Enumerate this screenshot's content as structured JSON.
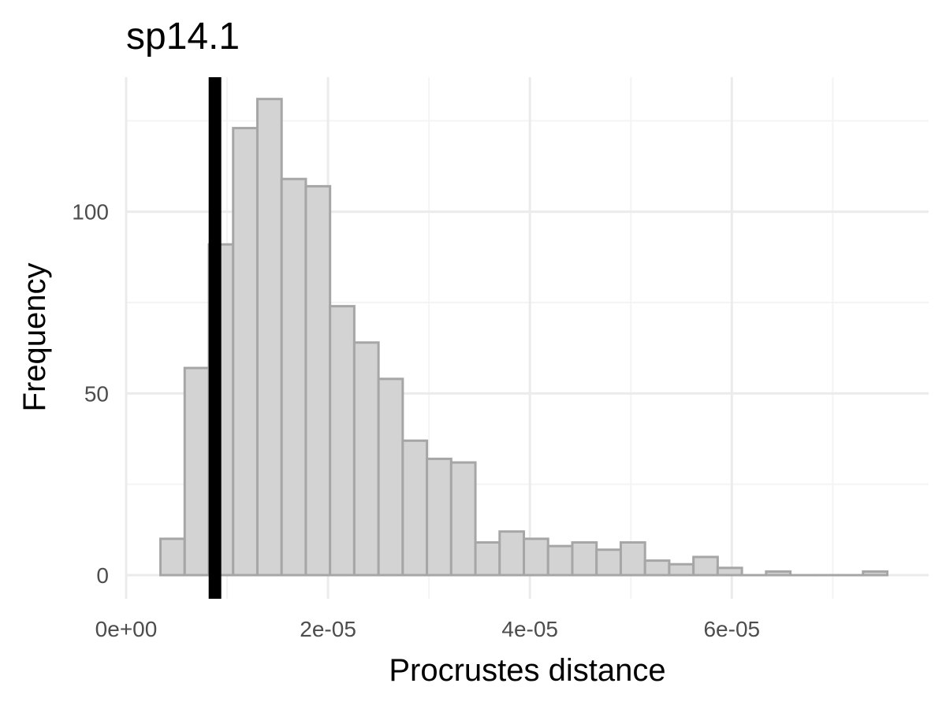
{
  "chart_data": {
    "type": "bar",
    "title": "sp14.1",
    "xlabel": "Procrustes distance",
    "ylabel": "Frequency",
    "xlim": [
      0,
      7.95e-05
    ],
    "ylim": [
      -6.5,
      137
    ],
    "x_ticks": [
      {
        "value": 0,
        "label": "0e+00"
      },
      {
        "value": 2e-05,
        "label": "2e-05"
      },
      {
        "value": 4e-05,
        "label": "4e-05"
      },
      {
        "value": 6e-05,
        "label": "6e-05"
      }
    ],
    "x_minor_ticks": [
      1e-05,
      3e-05,
      5e-05,
      7e-05
    ],
    "y_ticks": [
      {
        "value": 0,
        "label": "0"
      },
      {
        "value": 50,
        "label": "50"
      },
      {
        "value": 100,
        "label": "100"
      }
    ],
    "y_minor_ticks": [
      25,
      75,
      125
    ],
    "grid": true,
    "bin_width": 2.4e-06,
    "bins": [
      {
        "start": 3.4e-06,
        "count": 10
      },
      {
        "start": 5.8e-06,
        "count": 57
      },
      {
        "start": 8.2e-06,
        "count": 91
      },
      {
        "start": 1.06e-05,
        "count": 123
      },
      {
        "start": 1.3e-05,
        "count": 131
      },
      {
        "start": 1.54e-05,
        "count": 109
      },
      {
        "start": 1.78e-05,
        "count": 107
      },
      {
        "start": 2.02e-05,
        "count": 74
      },
      {
        "start": 2.26e-05,
        "count": 64
      },
      {
        "start": 2.5e-05,
        "count": 54
      },
      {
        "start": 2.74e-05,
        "count": 37
      },
      {
        "start": 2.98e-05,
        "count": 32
      },
      {
        "start": 3.22e-05,
        "count": 31
      },
      {
        "start": 3.46e-05,
        "count": 9
      },
      {
        "start": 3.7e-05,
        "count": 12
      },
      {
        "start": 3.94e-05,
        "count": 10
      },
      {
        "start": 4.18e-05,
        "count": 8
      },
      {
        "start": 4.42e-05,
        "count": 9
      },
      {
        "start": 4.66e-05,
        "count": 7
      },
      {
        "start": 4.9e-05,
        "count": 9
      },
      {
        "start": 5.14e-05,
        "count": 4
      },
      {
        "start": 5.38e-05,
        "count": 3
      },
      {
        "start": 5.62e-05,
        "count": 5
      },
      {
        "start": 5.86e-05,
        "count": 2
      },
      {
        "start": 6.1e-05,
        "count": 0
      },
      {
        "start": 6.34e-05,
        "count": 1
      },
      {
        "start": 6.58e-05,
        "count": 0
      },
      {
        "start": 6.82e-05,
        "count": 0
      },
      {
        "start": 7.06e-05,
        "count": 0
      },
      {
        "start": 7.3e-05,
        "count": 1
      }
    ],
    "reference_line": {
      "x": 8.8e-06
    },
    "colors": {
      "bar_fill": "#d3d3d3",
      "bar_outline": "#a6a6a6",
      "grid_major": "#ebebeb",
      "grid_minor": "#f4f4f4",
      "reference_line": "#000000"
    }
  }
}
